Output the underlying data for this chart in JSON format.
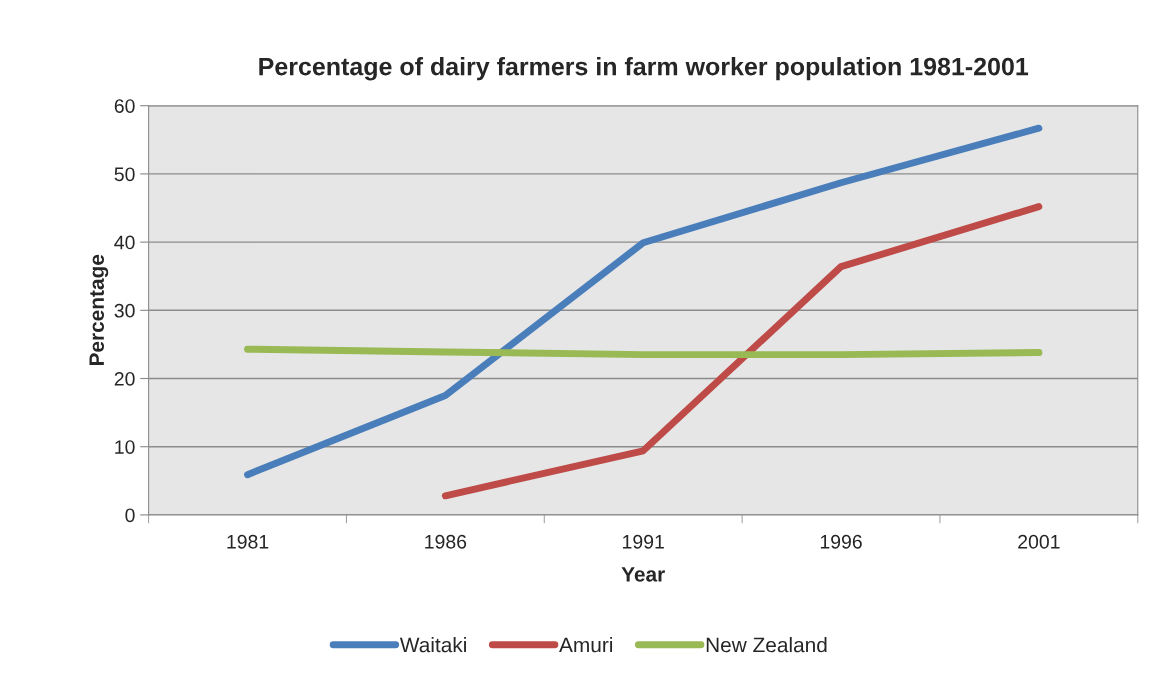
{
  "chart_data": {
    "type": "line",
    "title": "Percentage of dairy farmers in farm worker population 1981-2001",
    "xlabel": "Year",
    "ylabel": "Percentage",
    "categories": [
      "1981",
      "1986",
      "1991",
      "1996",
      "2001"
    ],
    "series": [
      {
        "name": "Waitaki",
        "color": "#4a7ebb",
        "values": [
          5.9,
          17.5,
          39.9,
          48.7,
          56.7
        ]
      },
      {
        "name": "Amuri",
        "color": "#be4b48",
        "values": [
          null,
          2.8,
          9.4,
          36.4,
          45.2
        ]
      },
      {
        "name": "New Zealand",
        "color": "#98b954",
        "values": [
          24.3,
          23.9,
          23.5,
          23.5,
          23.8
        ]
      }
    ],
    "ylim": [
      0,
      60
    ],
    "yticks": [
      0,
      10,
      20,
      30,
      40,
      50,
      60
    ],
    "grid": "y",
    "legend": "bottom",
    "marker": "none",
    "line_style": "solid"
  }
}
